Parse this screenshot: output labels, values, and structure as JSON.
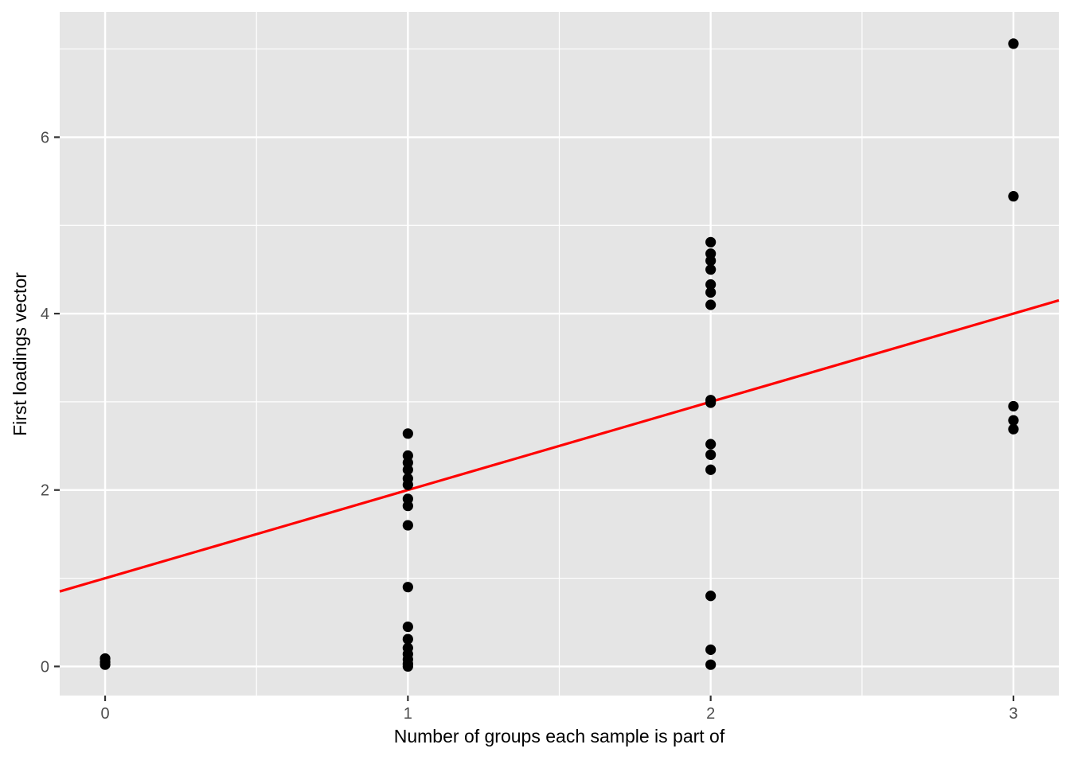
{
  "chart_data": {
    "type": "scatter",
    "title": "",
    "xlabel": "Number of groups each sample is part of",
    "ylabel": "First loadings vector",
    "xlim": [
      -0.15,
      3.15
    ],
    "ylim": [
      -0.33,
      7.42
    ],
    "x_major_ticks": [
      0,
      1,
      2,
      3
    ],
    "y_major_ticks": [
      0,
      2,
      4,
      6
    ],
    "x_minor_gridlines": [
      0.5,
      1.5,
      2.5
    ],
    "y_minor_gridlines": [
      1,
      3,
      5,
      7
    ],
    "grid": true,
    "legend": "none",
    "panel_background": "#E5E5E5",
    "gridline_color": "#FFFFFF",
    "point_color": "#000000",
    "tick_label_color": "#4D4D4D",
    "tick_mark_color": "#333333",
    "points": [
      {
        "x": 0,
        "y": 0.09
      },
      {
        "x": 0,
        "y": 0.05
      },
      {
        "x": 0,
        "y": 0.02
      },
      {
        "x": 1,
        "y": 2.64
      },
      {
        "x": 1,
        "y": 2.39
      },
      {
        "x": 1,
        "y": 2.31
      },
      {
        "x": 1,
        "y": 2.23
      },
      {
        "x": 1,
        "y": 2.13
      },
      {
        "x": 1,
        "y": 2.06
      },
      {
        "x": 1,
        "y": 1.9
      },
      {
        "x": 1,
        "y": 1.82
      },
      {
        "x": 1,
        "y": 1.6
      },
      {
        "x": 1,
        "y": 0.9
      },
      {
        "x": 1,
        "y": 0.45
      },
      {
        "x": 1,
        "y": 0.31
      },
      {
        "x": 1,
        "y": 0.21
      },
      {
        "x": 1,
        "y": 0.14
      },
      {
        "x": 1,
        "y": 0.08
      },
      {
        "x": 1,
        "y": 0.03
      },
      {
        "x": 1,
        "y": 0.0
      },
      {
        "x": 2,
        "y": 4.81
      },
      {
        "x": 2,
        "y": 4.68
      },
      {
        "x": 2,
        "y": 4.6
      },
      {
        "x": 2,
        "y": 4.5
      },
      {
        "x": 2,
        "y": 4.33
      },
      {
        "x": 2,
        "y": 4.24
      },
      {
        "x": 2,
        "y": 4.1
      },
      {
        "x": 2,
        "y": 3.02
      },
      {
        "x": 2,
        "y": 2.99
      },
      {
        "x": 2,
        "y": 2.52
      },
      {
        "x": 2,
        "y": 2.4
      },
      {
        "x": 2,
        "y": 2.23
      },
      {
        "x": 2,
        "y": 0.8
      },
      {
        "x": 2,
        "y": 0.19
      },
      {
        "x": 2,
        "y": 0.02
      },
      {
        "x": 3,
        "y": 7.06
      },
      {
        "x": 3,
        "y": 5.33
      },
      {
        "x": 3,
        "y": 2.95
      },
      {
        "x": 3,
        "y": 2.79
      },
      {
        "x": 3,
        "y": 2.69
      }
    ],
    "trend_line": {
      "type": "linear",
      "color": "#FF0000",
      "x_start": -0.15,
      "y_start": 0.85,
      "x_end": 3.15,
      "y_end": 4.15,
      "slope": 1.0,
      "intercept": 1.0
    }
  }
}
